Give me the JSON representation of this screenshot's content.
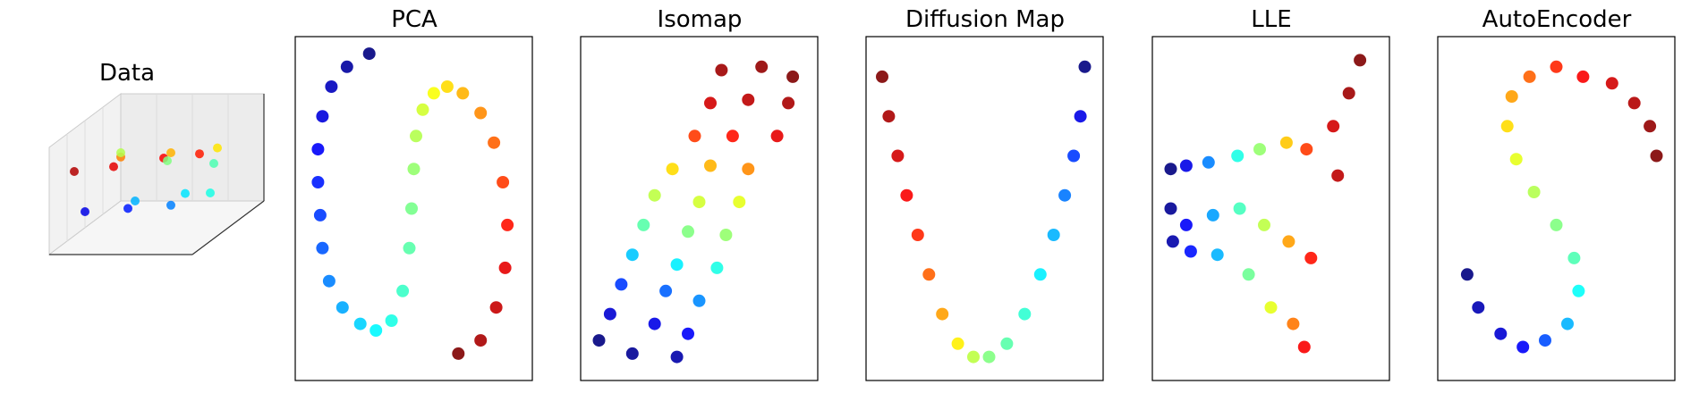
{
  "chart_data": [
    {
      "type": "scatter",
      "projection": "3d",
      "title": "Data",
      "axes": "3d box, no tick labels",
      "colormap": "jet",
      "grid": true,
      "series": [
        {
          "points": [
            {
              "x": 0.1,
              "y": 0.15,
              "z": 0.7,
              "t": 0.95
            },
            {
              "x": 0.35,
              "y": 0.2,
              "z": 0.72,
              "t": 0.9
            },
            {
              "x": 0.65,
              "y": 0.3,
              "z": 0.75,
              "t": 0.88
            },
            {
              "x": 0.85,
              "y": 0.4,
              "z": 0.74,
              "t": 0.85
            },
            {
              "x": 0.25,
              "y": 0.5,
              "z": 0.66,
              "t": 0.75
            },
            {
              "x": 0.55,
              "y": 0.6,
              "z": 0.65,
              "t": 0.7
            },
            {
              "x": 0.8,
              "y": 0.75,
              "z": 0.62,
              "t": 0.65
            },
            {
              "x": 0.1,
              "y": 0.8,
              "z": 0.55,
              "t": 0.55
            },
            {
              "x": 0.4,
              "y": 0.85,
              "z": 0.45,
              "t": 0.5
            },
            {
              "x": 0.7,
              "y": 0.9,
              "z": 0.4,
              "t": 0.45
            },
            {
              "x": 0.15,
              "y": 0.2,
              "z": 0.3,
              "t": 0.1
            },
            {
              "x": 0.4,
              "y": 0.3,
              "z": 0.28,
              "t": 0.15
            },
            {
              "x": 0.65,
              "y": 0.4,
              "z": 0.26,
              "t": 0.25
            },
            {
              "x": 0.85,
              "y": 0.55,
              "z": 0.3,
              "t": 0.4
            },
            {
              "x": 0.3,
              "y": 0.6,
              "z": 0.2,
              "t": 0.3
            },
            {
              "x": 0.6,
              "y": 0.7,
              "z": 0.22,
              "t": 0.35
            }
          ]
        }
      ]
    },
    {
      "type": "scatter",
      "title": "PCA",
      "colormap": "jet",
      "axes_ticks": false,
      "series": [
        {
          "points": [
            {
              "x": 0.3,
              "y": 0.97,
              "t": 0.0
            },
            {
              "x": 0.2,
              "y": 0.93,
              "t": 0.03
            },
            {
              "x": 0.13,
              "y": 0.87,
              "t": 0.06
            },
            {
              "x": 0.09,
              "y": 0.78,
              "t": 0.09
            },
            {
              "x": 0.07,
              "y": 0.68,
              "t": 0.12
            },
            {
              "x": 0.07,
              "y": 0.58,
              "t": 0.15
            },
            {
              "x": 0.08,
              "y": 0.48,
              "t": 0.18
            },
            {
              "x": 0.09,
              "y": 0.38,
              "t": 0.21
            },
            {
              "x": 0.12,
              "y": 0.28,
              "t": 0.25
            },
            {
              "x": 0.18,
              "y": 0.2,
              "t": 0.29
            },
            {
              "x": 0.26,
              "y": 0.15,
              "t": 0.33
            },
            {
              "x": 0.33,
              "y": 0.13,
              "t": 0.37
            },
            {
              "x": 0.4,
              "y": 0.16,
              "t": 0.4
            },
            {
              "x": 0.45,
              "y": 0.25,
              "t": 0.43
            },
            {
              "x": 0.48,
              "y": 0.38,
              "t": 0.46
            },
            {
              "x": 0.49,
              "y": 0.5,
              "t": 0.49
            },
            {
              "x": 0.5,
              "y": 0.62,
              "t": 0.52
            },
            {
              "x": 0.51,
              "y": 0.72,
              "t": 0.55
            },
            {
              "x": 0.54,
              "y": 0.8,
              "t": 0.58
            },
            {
              "x": 0.59,
              "y": 0.85,
              "t": 0.62
            },
            {
              "x": 0.65,
              "y": 0.87,
              "t": 0.66
            },
            {
              "x": 0.72,
              "y": 0.85,
              "t": 0.7
            },
            {
              "x": 0.8,
              "y": 0.79,
              "t": 0.74
            },
            {
              "x": 0.86,
              "y": 0.7,
              "t": 0.78
            },
            {
              "x": 0.9,
              "y": 0.58,
              "t": 0.82
            },
            {
              "x": 0.92,
              "y": 0.45,
              "t": 0.86
            },
            {
              "x": 0.91,
              "y": 0.32,
              "t": 0.9
            },
            {
              "x": 0.87,
              "y": 0.2,
              "t": 0.93
            },
            {
              "x": 0.8,
              "y": 0.1,
              "t": 0.96
            },
            {
              "x": 0.7,
              "y": 0.06,
              "t": 1.0
            }
          ]
        }
      ]
    },
    {
      "type": "scatter",
      "title": "Isomap",
      "colormap": "jet",
      "axes_ticks": false,
      "series": [
        {
          "points": [
            {
              "x": 0.05,
              "y": 0.1,
              "t": 0.0
            },
            {
              "x": 0.2,
              "y": 0.06,
              "t": 0.02
            },
            {
              "x": 0.4,
              "y": 0.05,
              "t": 0.04
            },
            {
              "x": 0.1,
              "y": 0.18,
              "t": 0.08
            },
            {
              "x": 0.3,
              "y": 0.15,
              "t": 0.1
            },
            {
              "x": 0.45,
              "y": 0.12,
              "t": 0.12
            },
            {
              "x": 0.15,
              "y": 0.27,
              "t": 0.18
            },
            {
              "x": 0.35,
              "y": 0.25,
              "t": 0.22
            },
            {
              "x": 0.5,
              "y": 0.22,
              "t": 0.26
            },
            {
              "x": 0.2,
              "y": 0.36,
              "t": 0.32
            },
            {
              "x": 0.4,
              "y": 0.33,
              "t": 0.36
            },
            {
              "x": 0.58,
              "y": 0.32,
              "t": 0.4
            },
            {
              "x": 0.25,
              "y": 0.45,
              "t": 0.46
            },
            {
              "x": 0.45,
              "y": 0.43,
              "t": 0.5
            },
            {
              "x": 0.62,
              "y": 0.42,
              "t": 0.52
            },
            {
              "x": 0.3,
              "y": 0.54,
              "t": 0.56
            },
            {
              "x": 0.5,
              "y": 0.52,
              "t": 0.58
            },
            {
              "x": 0.68,
              "y": 0.52,
              "t": 0.6
            },
            {
              "x": 0.38,
              "y": 0.62,
              "t": 0.66
            },
            {
              "x": 0.55,
              "y": 0.63,
              "t": 0.7
            },
            {
              "x": 0.72,
              "y": 0.62,
              "t": 0.74
            },
            {
              "x": 0.48,
              "y": 0.72,
              "t": 0.82
            },
            {
              "x": 0.65,
              "y": 0.72,
              "t": 0.86
            },
            {
              "x": 0.85,
              "y": 0.72,
              "t": 0.9
            },
            {
              "x": 0.55,
              "y": 0.82,
              "t": 0.92
            },
            {
              "x": 0.72,
              "y": 0.83,
              "t": 0.94
            },
            {
              "x": 0.9,
              "y": 0.82,
              "t": 0.96
            },
            {
              "x": 0.6,
              "y": 0.92,
              "t": 0.97
            },
            {
              "x": 0.78,
              "y": 0.93,
              "t": 0.98
            },
            {
              "x": 0.92,
              "y": 0.9,
              "t": 1.0
            }
          ]
        }
      ]
    },
    {
      "type": "scatter",
      "title": "Diffusion Map",
      "colormap": "jet",
      "axes_ticks": false,
      "series": [
        {
          "points": [
            {
              "x": 0.04,
              "y": 0.9,
              "t": 1.0
            },
            {
              "x": 0.07,
              "y": 0.78,
              "t": 0.96
            },
            {
              "x": 0.11,
              "y": 0.66,
              "t": 0.92
            },
            {
              "x": 0.15,
              "y": 0.54,
              "t": 0.88
            },
            {
              "x": 0.2,
              "y": 0.42,
              "t": 0.84
            },
            {
              "x": 0.25,
              "y": 0.3,
              "t": 0.78
            },
            {
              "x": 0.31,
              "y": 0.18,
              "t": 0.72
            },
            {
              "x": 0.38,
              "y": 0.09,
              "t": 0.64
            },
            {
              "x": 0.45,
              "y": 0.05,
              "t": 0.56
            },
            {
              "x": 0.52,
              "y": 0.05,
              "t": 0.5
            },
            {
              "x": 0.6,
              "y": 0.09,
              "t": 0.46
            },
            {
              "x": 0.68,
              "y": 0.18,
              "t": 0.42
            },
            {
              "x": 0.75,
              "y": 0.3,
              "t": 0.36
            },
            {
              "x": 0.81,
              "y": 0.42,
              "t": 0.3
            },
            {
              "x": 0.86,
              "y": 0.54,
              "t": 0.24
            },
            {
              "x": 0.9,
              "y": 0.66,
              "t": 0.18
            },
            {
              "x": 0.93,
              "y": 0.78,
              "t": 0.1
            },
            {
              "x": 0.95,
              "y": 0.93,
              "t": 0.0
            }
          ]
        }
      ]
    },
    {
      "type": "scatter",
      "title": "LLE",
      "colormap": "jet",
      "axes_ticks": false,
      "series": [
        {
          "points": [
            {
              "x": 0.05,
              "y": 0.62,
              "t": 0.0
            },
            {
              "x": 0.05,
              "y": 0.5,
              "t": 0.02
            },
            {
              "x": 0.06,
              "y": 0.4,
              "t": 0.04
            },
            {
              "x": 0.12,
              "y": 0.63,
              "t": 0.1
            },
            {
              "x": 0.12,
              "y": 0.45,
              "t": 0.12
            },
            {
              "x": 0.14,
              "y": 0.37,
              "t": 0.14
            },
            {
              "x": 0.22,
              "y": 0.64,
              "t": 0.25
            },
            {
              "x": 0.24,
              "y": 0.48,
              "t": 0.28
            },
            {
              "x": 0.26,
              "y": 0.36,
              "t": 0.3
            },
            {
              "x": 0.35,
              "y": 0.66,
              "t": 0.4
            },
            {
              "x": 0.36,
              "y": 0.5,
              "t": 0.44
            },
            {
              "x": 0.4,
              "y": 0.3,
              "t": 0.48
            },
            {
              "x": 0.45,
              "y": 0.68,
              "t": 0.52
            },
            {
              "x": 0.47,
              "y": 0.45,
              "t": 0.56
            },
            {
              "x": 0.5,
              "y": 0.2,
              "t": 0.6
            },
            {
              "x": 0.57,
              "y": 0.7,
              "t": 0.68
            },
            {
              "x": 0.58,
              "y": 0.4,
              "t": 0.72
            },
            {
              "x": 0.6,
              "y": 0.15,
              "t": 0.76
            },
            {
              "x": 0.66,
              "y": 0.68,
              "t": 0.82
            },
            {
              "x": 0.68,
              "y": 0.35,
              "t": 0.86
            },
            {
              "x": 0.65,
              "y": 0.08,
              "t": 0.88
            },
            {
              "x": 0.78,
              "y": 0.75,
              "t": 0.92
            },
            {
              "x": 0.8,
              "y": 0.6,
              "t": 0.94
            },
            {
              "x": 0.85,
              "y": 0.85,
              "t": 0.97
            },
            {
              "x": 0.9,
              "y": 0.95,
              "t": 1.0
            }
          ]
        }
      ]
    },
    {
      "type": "scatter",
      "title": "AutoEncoder",
      "colormap": "jet",
      "axes_ticks": false,
      "series": [
        {
          "points": [
            {
              "x": 0.1,
              "y": 0.3,
              "t": 0.0
            },
            {
              "x": 0.15,
              "y": 0.2,
              "t": 0.05
            },
            {
              "x": 0.25,
              "y": 0.12,
              "t": 0.08
            },
            {
              "x": 0.35,
              "y": 0.08,
              "t": 0.12
            },
            {
              "x": 0.45,
              "y": 0.1,
              "t": 0.2
            },
            {
              "x": 0.55,
              "y": 0.15,
              "t": 0.3
            },
            {
              "x": 0.6,
              "y": 0.25,
              "t": 0.38
            },
            {
              "x": 0.58,
              "y": 0.35,
              "t": 0.45
            },
            {
              "x": 0.5,
              "y": 0.45,
              "t": 0.5
            },
            {
              "x": 0.4,
              "y": 0.55,
              "t": 0.55
            },
            {
              "x": 0.32,
              "y": 0.65,
              "t": 0.6
            },
            {
              "x": 0.28,
              "y": 0.75,
              "t": 0.66
            },
            {
              "x": 0.3,
              "y": 0.84,
              "t": 0.72
            },
            {
              "x": 0.38,
              "y": 0.9,
              "t": 0.78
            },
            {
              "x": 0.5,
              "y": 0.93,
              "t": 0.84
            },
            {
              "x": 0.62,
              "y": 0.9,
              "t": 0.88
            },
            {
              "x": 0.75,
              "y": 0.88,
              "t": 0.92
            },
            {
              "x": 0.85,
              "y": 0.82,
              "t": 0.95
            },
            {
              "x": 0.92,
              "y": 0.75,
              "t": 0.98
            },
            {
              "x": 0.95,
              "y": 0.66,
              "t": 1.0
            }
          ]
        }
      ]
    }
  ]
}
